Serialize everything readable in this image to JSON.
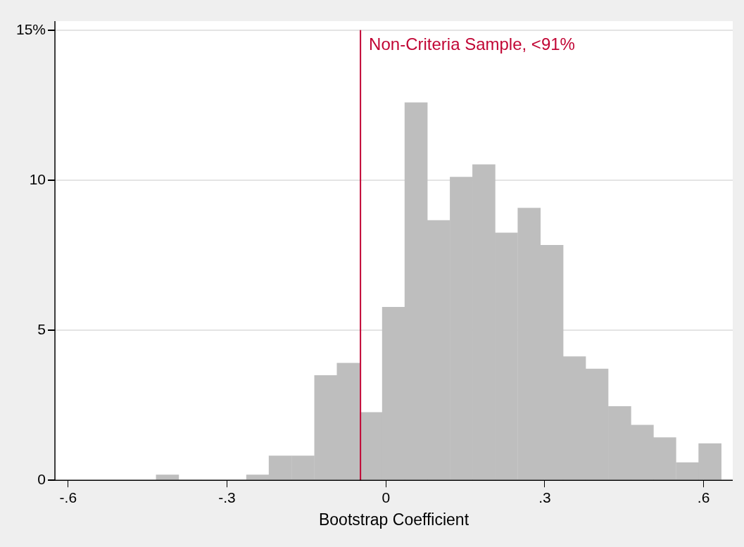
{
  "chart_data": {
    "type": "histogram",
    "xlabel": "Bootstrap Coefficient",
    "bins": [
      -0.434,
      -0.391,
      -0.349,
      -0.306,
      -0.263,
      -0.221,
      -0.178,
      -0.135,
      -0.092,
      -0.05,
      -0.007,
      0.036,
      0.078,
      0.121,
      0.164,
      0.206,
      0.249,
      0.292,
      0.335,
      0.377,
      0.42,
      0.463,
      0.505,
      0.548,
      0.591,
      0.633
    ],
    "values": [
      0.18,
      0,
      0,
      0,
      0.18,
      0.81,
      0.81,
      3.49,
      3.9,
      2.26,
      5.77,
      12.58,
      8.66,
      10.1,
      10.52,
      8.24,
      9.07,
      7.83,
      4.12,
      3.71,
      2.46,
      1.84,
      1.42,
      0.59,
      1.22
    ],
    "color": "#bebebe",
    "xlim": [
      -0.625,
      0.655
    ],
    "xticks": [
      {
        "value": -0.6,
        "label": "-.6"
      },
      {
        "value": -0.3,
        "label": "-.3"
      },
      0,
      {
        "value": 0.3,
        "label": ".3"
      },
      {
        "value": 0.6,
        "label": ".6"
      }
    ],
    "ylim": [
      0,
      15.3
    ],
    "yticks": [
      0,
      5,
      10,
      {
        "value": 15,
        "label": "15%"
      }
    ],
    "grid": "y",
    "ref_lines": [
      {
        "axis": "x",
        "value": -0.048,
        "label": "Non-Criteria Sample, <91%",
        "color": "#c10534"
      }
    ]
  }
}
